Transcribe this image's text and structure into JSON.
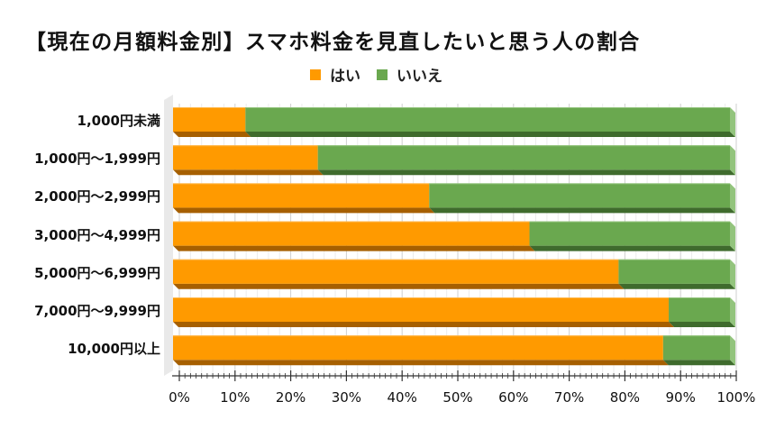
{
  "chart_data": {
    "type": "bar",
    "orientation": "horizontal",
    "stacked": "percent",
    "three_d": true,
    "title": "【現在の月額料金別】スマホ料金を見直したいと思う人の割合",
    "xlabel": "",
    "ylabel": "",
    "legend_position": "top",
    "grid": true,
    "xlim": [
      0,
      100
    ],
    "x_ticks": [
      "0%",
      "10%",
      "20%",
      "30%",
      "40%",
      "50%",
      "60%",
      "70%",
      "80%",
      "90%",
      "100%"
    ],
    "categories": [
      "1,000円未満",
      "1,000円～1,999円",
      "2,000円～2,999円",
      "3,000円～4,999円",
      "5,000円～6,999円",
      "7,000円～9,999円",
      "10,000円以上"
    ],
    "series": [
      {
        "name": "はい",
        "color": "#ff9a00",
        "values": [
          13,
          26,
          46,
          64,
          80,
          89,
          88
        ]
      },
      {
        "name": "いいえ",
        "color": "#6aa84f",
        "values": [
          87,
          74,
          54,
          36,
          20,
          11,
          12
        ]
      }
    ]
  },
  "title": "【現在の月額料金別】スマホ料金を見直したいと思う人の割合",
  "legend": [
    {
      "label": "はい",
      "color": "#ff9a00"
    },
    {
      "label": "いいえ",
      "color": "#6aa84f"
    }
  ]
}
